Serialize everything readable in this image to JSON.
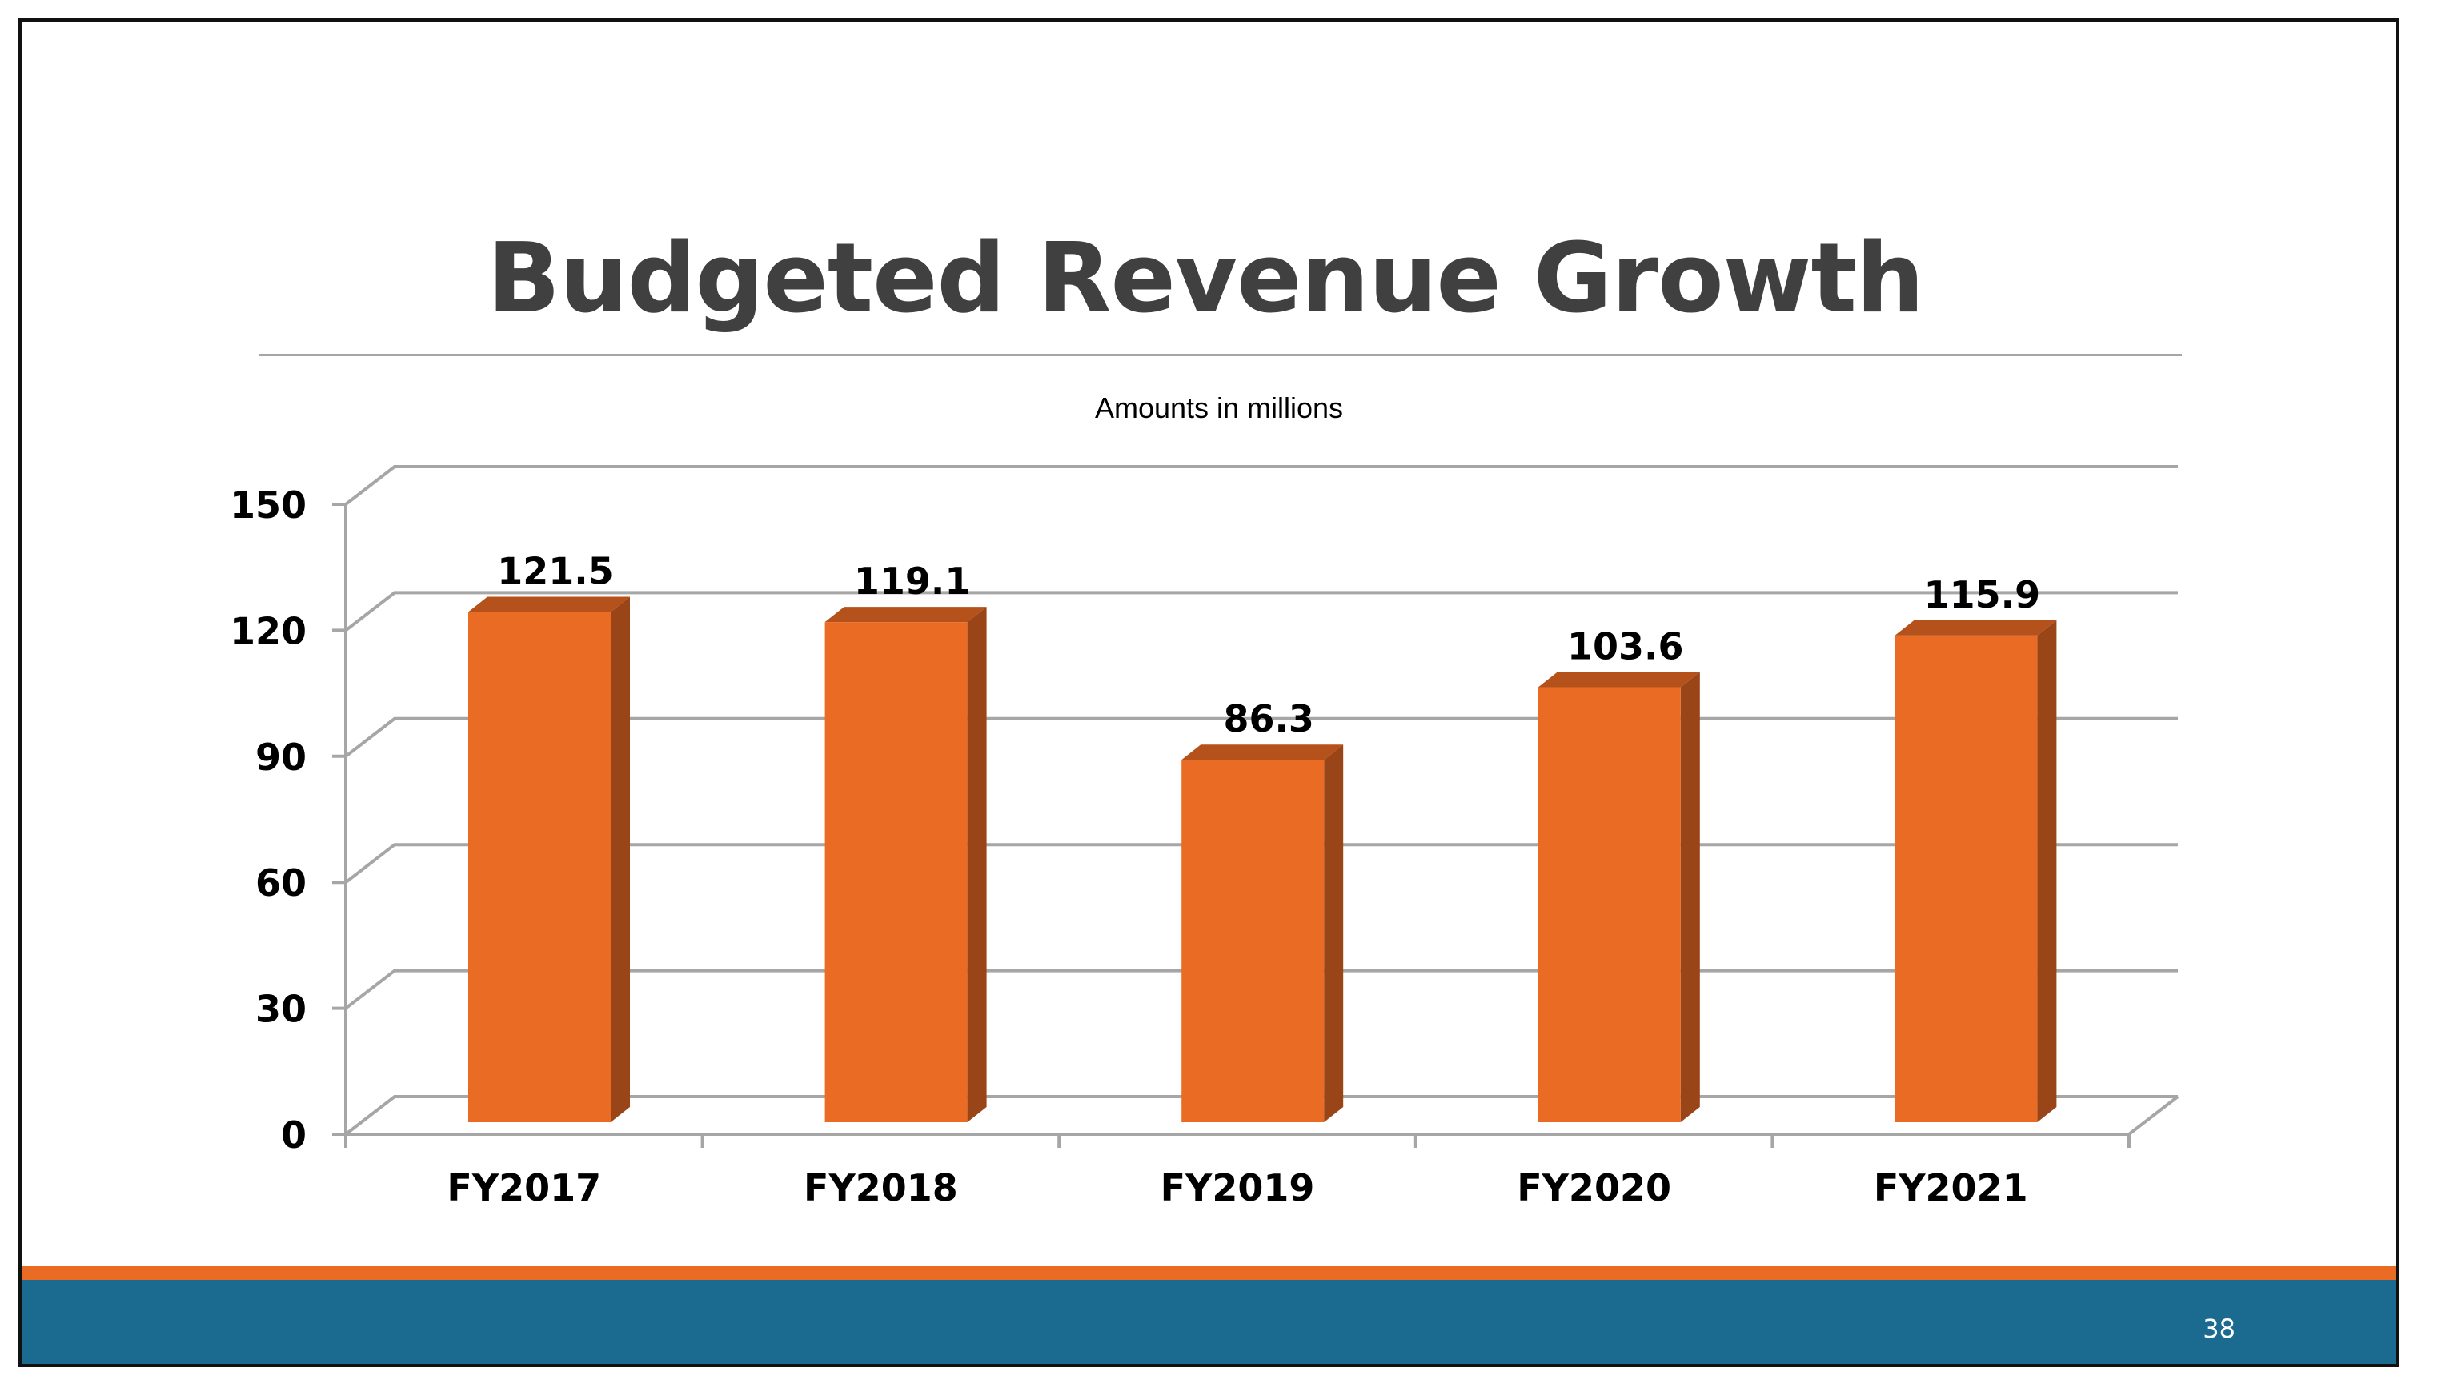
{
  "slide": {
    "title": "Budgeted Revenue Growth",
    "page_number": "38",
    "colors": {
      "title": "#404040",
      "footer_orange": "#E96B24",
      "footer_blue": "#1B6B91",
      "bar_front": "#E96B24",
      "bar_top": "#B5521C",
      "bar_side": "#9A4517",
      "grid": "#a6a6a6"
    }
  },
  "chart_data": {
    "type": "bar",
    "style": "3d-column",
    "title": "",
    "subtitle": "Amounts in millions",
    "xlabel": "",
    "ylabel": "",
    "categories": [
      "FY2017",
      "FY2018",
      "FY2019",
      "FY2020",
      "FY2021"
    ],
    "values": [
      121.5,
      119.1,
      86.3,
      103.6,
      115.9
    ],
    "data_labels": [
      "121.5",
      "119.1",
      "86.3",
      "103.6",
      "115.9"
    ],
    "ylim": [
      0,
      150
    ],
    "yticks": [
      0,
      30,
      60,
      90,
      120,
      150
    ],
    "ytick_labels": [
      "0",
      "30",
      "60",
      "90",
      "120",
      "150"
    ],
    "grid": true,
    "legend": "none"
  }
}
